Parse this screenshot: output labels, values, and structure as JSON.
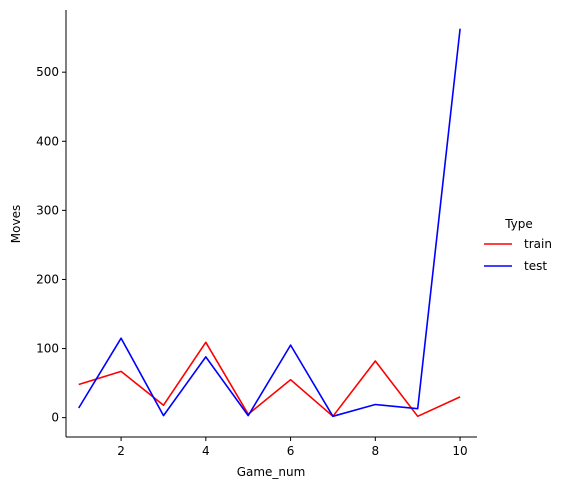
{
  "chart_data": {
    "type": "line",
    "xlabel": "Game_num",
    "ylabel": "Moves",
    "xlim": [
      0.7,
      10.4
    ],
    "ylim": [
      -28,
      590
    ],
    "xticks": [
      2,
      4,
      6,
      8,
      10
    ],
    "yticks": [
      0,
      100,
      200,
      300,
      400,
      500
    ],
    "grid": false,
    "legend": {
      "title": "Type",
      "placement": "right"
    },
    "series": [
      {
        "name": "train",
        "color": "#ff0000",
        "x": [
          1,
          2,
          3,
          4,
          5,
          6,
          7,
          8,
          9,
          10
        ],
        "values": [
          48,
          67,
          18,
          109,
          5,
          55,
          2,
          82,
          2,
          30
        ]
      },
      {
        "name": "test",
        "color": "#0000ff",
        "x": [
          1,
          2,
          3,
          4,
          5,
          6,
          7,
          8,
          9,
          10
        ],
        "values": [
          14,
          115,
          3,
          88,
          3,
          105,
          2,
          19,
          13,
          563
        ]
      }
    ]
  }
}
